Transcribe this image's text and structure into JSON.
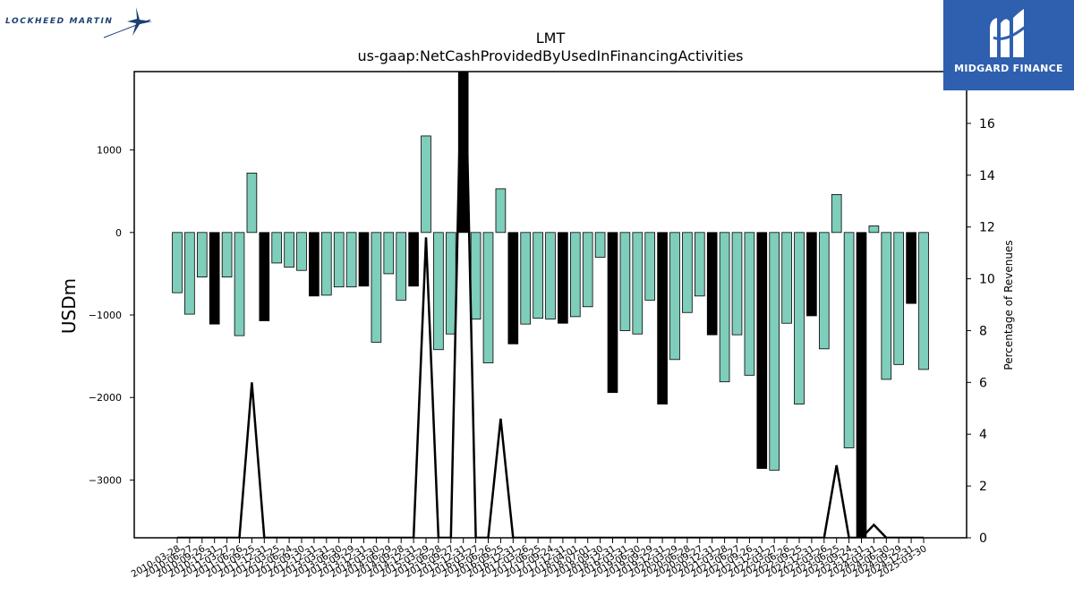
{
  "branding": {
    "left_logo_text": "LOCKHEED MARTIN",
    "right_logo_text": "MIDGARD FINANCE"
  },
  "colors": {
    "positive_bar": "#7fcdbb",
    "highlight_bar": "#000000",
    "line": "#000000",
    "logo_right_bg": "#2f5faf",
    "logo_left_text": "#1d3f73"
  },
  "chart_data": {
    "type": "bar",
    "title": "LMT",
    "subtitle": "us-gaap:NetCashProvidedByUsedInFinancingActivities",
    "ylabel": "USDm",
    "y2label": "Percentage of Revenues",
    "ylim": [
      -3700,
      1950
    ],
    "y2lim": [
      0,
      18
    ],
    "yticks": [
      1000,
      0,
      -1000,
      -2000,
      -3000
    ],
    "ytick_labels": [
      "1000",
      "0",
      "−1000",
      "−2000",
      "−3000"
    ],
    "y2ticks": [
      0,
      2,
      4,
      6,
      8,
      10,
      12,
      14,
      16
    ],
    "y2tick_labels": [
      "0",
      "2",
      "4",
      "6",
      "8",
      "10",
      "12",
      "14",
      "16"
    ],
    "grid": false,
    "x_tick_labels": [
      "2010-03-28",
      "2010-06-27",
      "2010-09-26",
      "2010-12-31",
      "2011-03-27",
      "2011-06-26",
      "2011-09-25",
      "2011-12-31",
      "2012-03-25",
      "2012-06-24",
      "2012-09-30",
      "2012-12-31",
      "2013-03-31",
      "2013-06-30",
      "2013-09-29",
      "2013-12-31",
      "2014-03-30",
      "2014-06-29",
      "2014-09-28",
      "2014-12-31",
      "2015-03-29",
      "2015-06-28",
      "2015-09-27",
      "2015-12-31",
      "2016-03-27",
      "2016-06-26",
      "2016-09-25",
      "2016-12-31",
      "2017-03-26",
      "2017-06-25",
      "2017-09-24",
      "2017-12-31",
      "2018-04-01",
      "2018-07-01",
      "2018-09-30",
      "2018-12-31",
      "2019-03-31",
      "2019-06-30",
      "2019-09-29",
      "2019-12-31",
      "2020-03-29",
      "2020-06-28",
      "2020-09-27",
      "2020-12-31",
      "2021-03-28",
      "2021-06-27",
      "2021-09-26",
      "2021-12-31",
      "2022-03-27",
      "2022-06-26",
      "2022-09-25",
      "2022-12-31",
      "2023-03-26",
      "2023-06-25",
      "2023-09-24",
      "2023-12-31",
      "2024-03-31",
      "2024-06-30",
      "2024-09-29",
      "2024-12-31",
      "2025-03-30"
    ],
    "values": [
      -730,
      -990,
      -540,
      -1110,
      -540,
      -1250,
      720,
      -1070,
      -370,
      -420,
      -460,
      -770,
      -760,
      -660,
      -660,
      -650,
      -1330,
      -500,
      -820,
      -650,
      1170,
      -1420,
      -1230,
      2400,
      -1050,
      -1580,
      530,
      -1350,
      -1110,
      -1040,
      -1050,
      -1100,
      -1020,
      -900,
      -300,
      -1940,
      -1190,
      -1230,
      -820,
      -2080,
      -1540,
      -970,
      -770,
      -1240,
      -1810,
      -1240,
      -1730,
      -2860,
      -2880,
      -1100,
      -2080,
      -1010,
      -1410,
      460,
      -2610,
      -3800,
      80,
      -1780,
      -1600,
      -860,
      -1660
    ],
    "highlight": [
      false,
      false,
      false,
      true,
      false,
      false,
      false,
      true,
      false,
      false,
      false,
      true,
      false,
      false,
      false,
      true,
      false,
      false,
      false,
      true,
      false,
      false,
      false,
      true,
      false,
      false,
      false,
      true,
      false,
      false,
      false,
      true,
      false,
      false,
      false,
      true,
      false,
      false,
      false,
      true,
      false,
      false,
      false,
      true,
      false,
      false,
      false,
      true,
      false,
      false,
      false,
      true,
      false,
      false,
      false,
      true,
      false,
      false,
      false,
      true,
      false
    ],
    "line_values": [
      0,
      0,
      0,
      0,
      0,
      0,
      6,
      0,
      0,
      0,
      0,
      0,
      0,
      0,
      0,
      0,
      0,
      0,
      0,
      0,
      11.6,
      0,
      0,
      22,
      0,
      0,
      4.6,
      0,
      0,
      0,
      0,
      0,
      0,
      0,
      0,
      0,
      0,
      0,
      0,
      0,
      0,
      0,
      0,
      0,
      0,
      0,
      0,
      0,
      0,
      0,
      0,
      0,
      0,
      2.8,
      0,
      0,
      0.5,
      0,
      0,
      0,
      0
    ]
  }
}
